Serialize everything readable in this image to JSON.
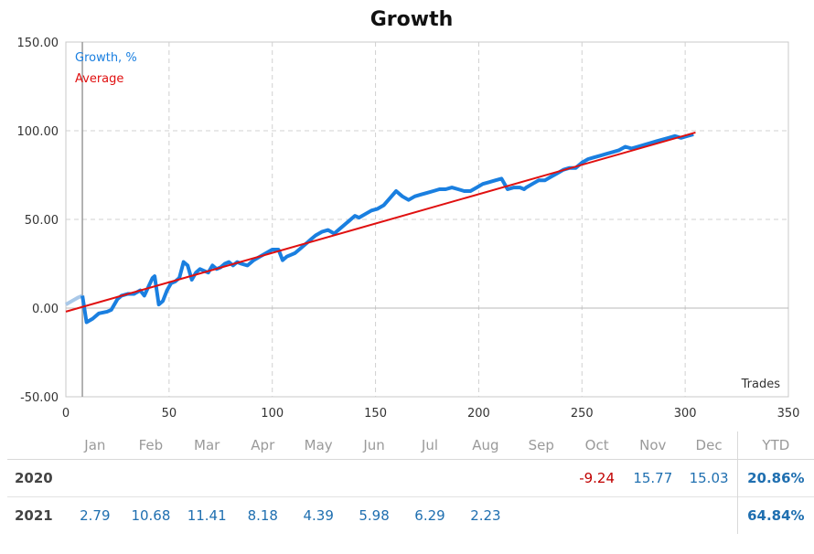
{
  "chart_data": {
    "type": "line",
    "title": "Growth",
    "xlabel": "Trades",
    "ylabel": "",
    "xlim": [
      0,
      350
    ],
    "ylim": [
      -50,
      150
    ],
    "x_ticks": [
      "0",
      "50",
      "100",
      "150",
      "200",
      "250",
      "300",
      "350"
    ],
    "y_ticks": [
      "-50.00",
      "0.00",
      "50.00",
      "100.00",
      "150.00"
    ],
    "grid": true,
    "legend_position": "top-left",
    "vertical_marker_x": 8,
    "series": [
      {
        "name": "Growth, %",
        "color": "#1a7fe0",
        "pre_color": "#a9c8e8",
        "x": [
          0,
          3,
          6,
          8,
          10,
          13,
          16,
          20,
          22,
          25,
          27,
          30,
          33,
          36,
          38,
          40,
          42,
          43,
          45,
          47,
          49,
          51,
          53,
          55,
          57,
          59,
          61,
          63,
          65,
          67,
          69,
          71,
          73,
          75,
          77,
          79,
          81,
          83,
          85,
          88,
          91,
          94,
          97,
          100,
          103,
          105,
          107,
          109,
          111,
          113,
          115,
          117,
          119,
          121,
          124,
          127,
          130,
          133,
          136,
          138,
          140,
          142,
          145,
          148,
          151,
          154,
          157,
          160,
          163,
          166,
          169,
          172,
          175,
          178,
          181,
          184,
          187,
          190,
          193,
          196,
          199,
          202,
          205,
          208,
          211,
          214,
          217,
          220,
          222,
          223,
          226,
          229,
          232,
          235,
          238,
          241,
          244,
          247,
          250,
          253,
          256,
          259,
          262,
          265,
          268,
          271,
          274,
          277,
          280,
          283,
          286,
          289,
          292,
          295,
          298,
          301,
          304
        ],
        "y": [
          2,
          4,
          6,
          7,
          -8,
          -6,
          -3,
          -2,
          -1,
          5,
          7,
          8,
          8,
          10,
          7,
          12,
          17,
          18,
          2,
          4,
          10,
          14,
          15,
          17,
          26,
          24,
          16,
          20,
          22,
          21,
          20,
          24,
          22,
          23,
          25,
          26,
          24,
          26,
          25,
          24,
          27,
          29,
          31,
          33,
          33,
          27,
          29,
          30,
          31,
          33,
          35,
          37,
          39,
          41,
          43,
          44,
          42,
          45,
          48,
          50,
          52,
          51,
          53,
          55,
          56,
          58,
          62,
          66,
          63,
          61,
          63,
          64,
          65,
          66,
          67,
          67,
          68,
          67,
          66,
          66,
          68,
          70,
          71,
          72,
          73,
          67,
          68,
          68,
          67,
          68,
          70,
          72,
          72,
          74,
          76,
          78,
          79,
          79,
          82,
          84,
          85,
          86,
          87,
          88,
          89,
          91,
          90,
          91,
          92,
          93,
          94,
          95,
          96,
          97,
          96,
          97,
          98
        ]
      },
      {
        "name": "Average",
        "color": "#e01010",
        "x": [
          0,
          305
        ],
        "y": [
          -2,
          99
        ]
      }
    ]
  },
  "table": {
    "months": [
      "Jan",
      "Feb",
      "Mar",
      "Apr",
      "May",
      "Jun",
      "Jul",
      "Aug",
      "Sep",
      "Oct",
      "Nov",
      "Dec"
    ],
    "ytd_label": "YTD",
    "rows": [
      {
        "year": "2020",
        "values": [
          "",
          "",
          "",
          "",
          "",
          "",
          "",
          "",
          "",
          "-9.24",
          "15.77",
          "15.03"
        ],
        "ytd": "20.86%"
      },
      {
        "year": "2021",
        "values": [
          "2.79",
          "10.68",
          "11.41",
          "8.18",
          "4.39",
          "5.98",
          "6.29",
          "2.23",
          "",
          "",
          "",
          ""
        ],
        "ytd": "64.84%"
      }
    ]
  }
}
